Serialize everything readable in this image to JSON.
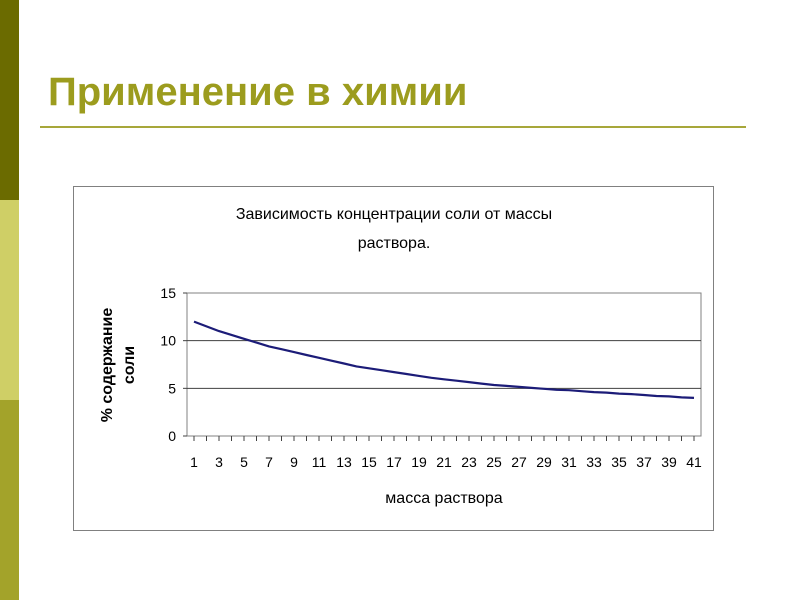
{
  "slide": {
    "title": "Применение в химии",
    "colors": {
      "title": "#9c9c1e",
      "rule": "#a7a73a",
      "bar_dark": "#6b6b00",
      "bar_light": "#cfcf66",
      "bar_mid": "#a3a32a",
      "series": "#1c1c78"
    }
  },
  "chart_data": {
    "type": "line",
    "title_lines": [
      "Зависимость концентрации соли от массы",
      "раствора."
    ],
    "xlabel": "масса  раствора",
    "ylabel_lines": [
      "% содержание",
      "соли"
    ],
    "ylim": [
      0,
      15
    ],
    "yticks": [
      0,
      5,
      10,
      15
    ],
    "grid": true,
    "legend": "none",
    "x": [
      1,
      2,
      3,
      4,
      5,
      6,
      7,
      8,
      9,
      10,
      11,
      12,
      13,
      14,
      15,
      16,
      17,
      18,
      19,
      20,
      21,
      22,
      23,
      24,
      25,
      26,
      27,
      28,
      29,
      30,
      31,
      32,
      33,
      34,
      35,
      36,
      37,
      38,
      39,
      40,
      41
    ],
    "x_tick_labels": [
      "1",
      "3",
      "5",
      "7",
      "9",
      "11",
      "13",
      "15",
      "17",
      "19",
      "21",
      "23",
      "25",
      "27",
      "29",
      "31",
      "33",
      "35",
      "37",
      "39",
      "41"
    ],
    "series": [
      {
        "values": [
          12.0,
          11.5,
          11.0,
          10.6,
          10.2,
          9.8,
          9.4,
          9.1,
          8.8,
          8.5,
          8.2,
          7.9,
          7.6,
          7.3,
          7.1,
          6.9,
          6.7,
          6.5,
          6.3,
          6.1,
          5.95,
          5.8,
          5.65,
          5.5,
          5.35,
          5.25,
          5.15,
          5.05,
          4.95,
          4.85,
          4.8,
          4.7,
          4.6,
          4.55,
          4.45,
          4.4,
          4.3,
          4.2,
          4.15,
          4.05,
          4.0
        ]
      }
    ]
  }
}
